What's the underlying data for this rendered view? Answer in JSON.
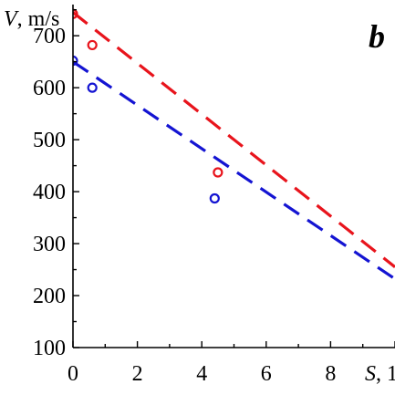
{
  "chart_data": {
    "type": "scatter",
    "panel_label": "b",
    "ylabel_var": "V",
    "ylabel_unit": ", m/s",
    "xlabel_var": "S",
    "xlabel_rest": ", 1",
    "xlim": [
      0,
      10
    ],
    "ylim": [
      100,
      760
    ],
    "x_ticks": [
      0,
      2,
      4,
      6,
      8
    ],
    "y_ticks": [
      100,
      200,
      300,
      400,
      500,
      600,
      700
    ],
    "series": [
      {
        "color": "#e8141c",
        "line_style": "dashed",
        "fit_line": [
          [
            0,
            745
          ],
          [
            10,
            255
          ]
        ],
        "points": [
          [
            0,
            742
          ],
          [
            0.6,
            682
          ],
          [
            4.5,
            437
          ]
        ]
      },
      {
        "color": "#1414d2",
        "line_style": "dashed",
        "fit_line": [
          [
            0,
            650
          ],
          [
            10,
            232
          ]
        ],
        "points": [
          [
            0,
            652
          ],
          [
            0.6,
            600
          ],
          [
            4.4,
            387
          ]
        ]
      }
    ]
  }
}
